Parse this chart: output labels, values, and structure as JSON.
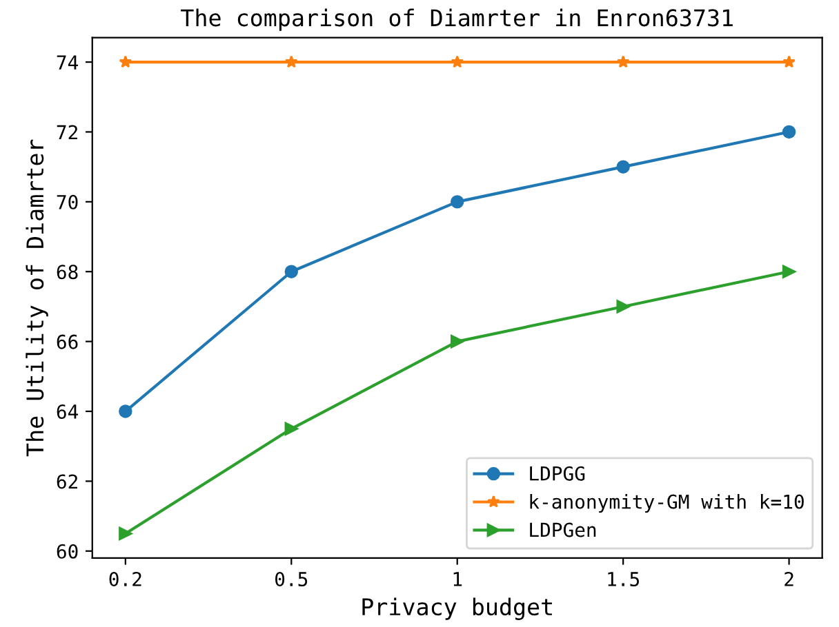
{
  "chart_data": {
    "type": "line",
    "title": "The comparison of Diamrter in Enron63731",
    "xlabel": "Privacy budget",
    "ylabel": "The Utility of Diamrter",
    "categories": [
      "0.2",
      "0.5",
      "1",
      "1.5",
      "2"
    ],
    "series": [
      {
        "name": "LDPGG",
        "color": "#1f77b4",
        "marker": "circle",
        "values": [
          64,
          68,
          70,
          71,
          72
        ]
      },
      {
        "name": "k-anonymity-GM with k=10",
        "color": "#ff7f0e",
        "marker": "star",
        "values": [
          74,
          74,
          74,
          74,
          74
        ]
      },
      {
        "name": "LDPGen",
        "color": "#2ca02c",
        "marker": "triangle",
        "values": [
          60.5,
          63.5,
          66,
          67,
          68
        ]
      }
    ],
    "ylim": [
      59.8,
      74.7
    ],
    "yticks": [
      60,
      62,
      64,
      66,
      68,
      70,
      72,
      74
    ],
    "grid": false,
    "legend": "bottom right",
    "line_style": "solid"
  }
}
